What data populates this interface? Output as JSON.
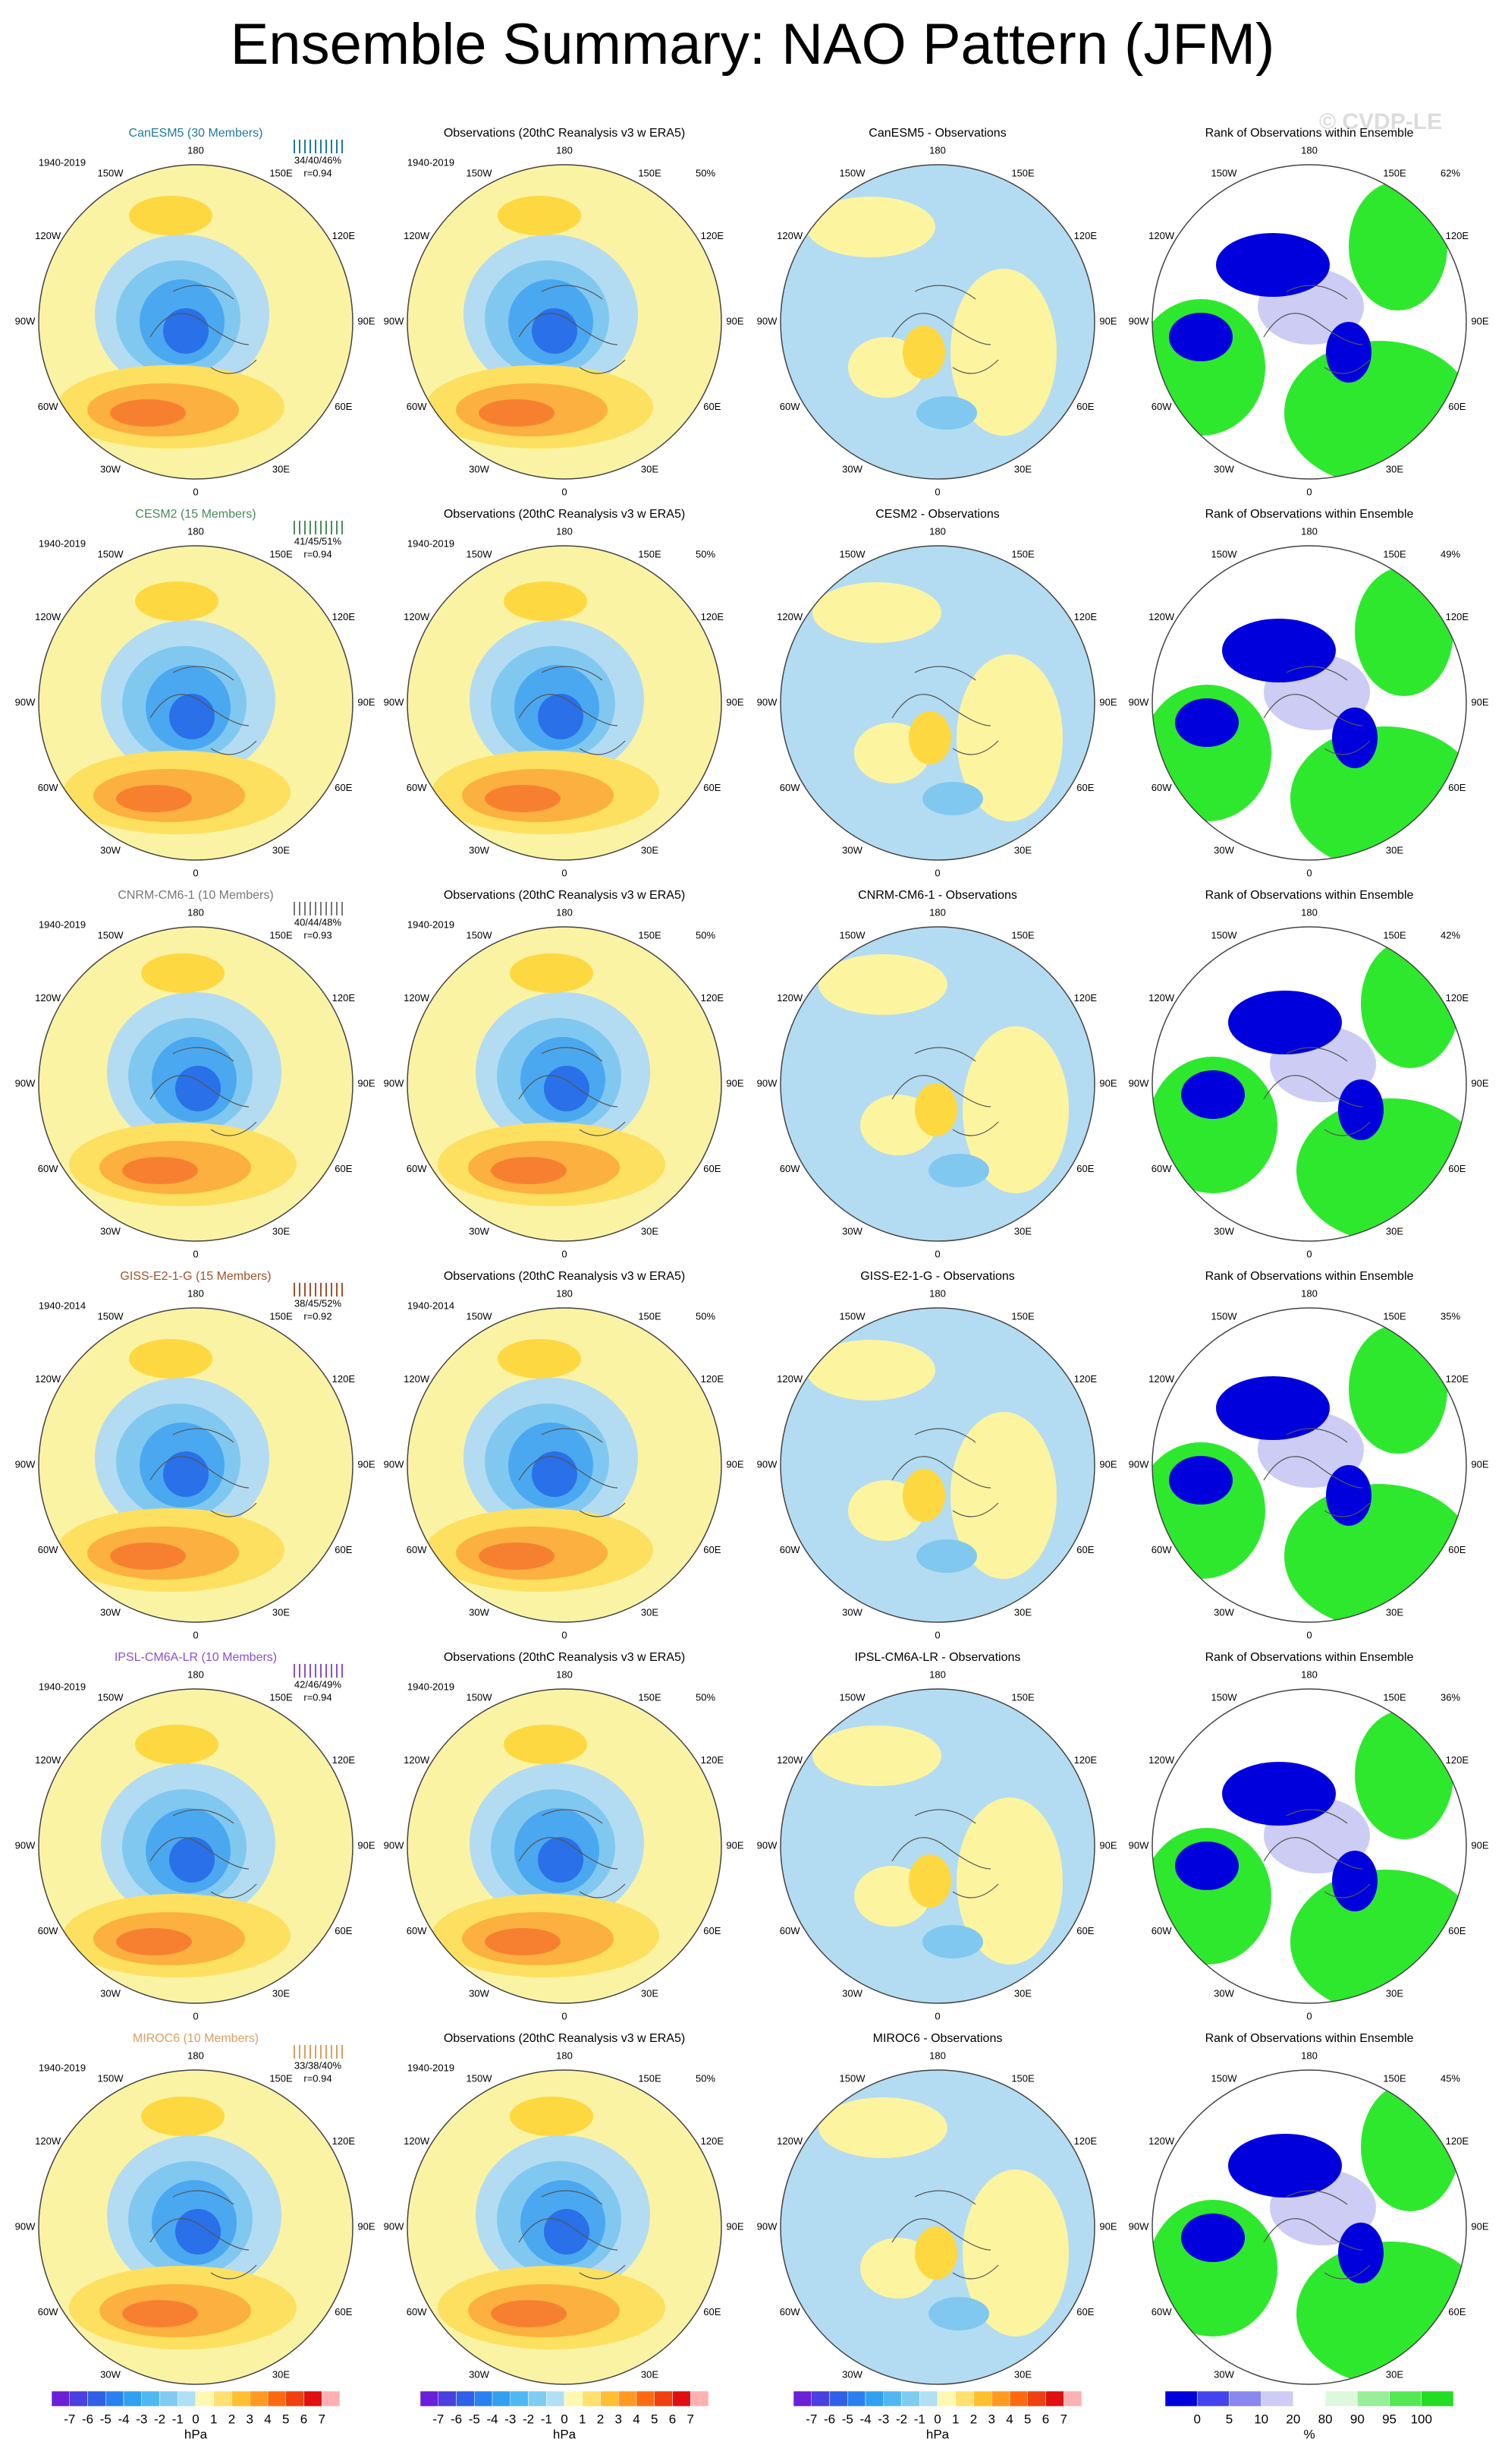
{
  "title": "Ensemble Summary: NAO Pattern (JFM)",
  "watermark": "© CVDP-LE",
  "obs_title": "Observations (20thC Reanalysis v3 w ERA5)",
  "rank_title": "Rank of Observations within Ensemble",
  "longitudes": [
    "0",
    "30E",
    "60E",
    "90E",
    "120E",
    "150E",
    "180",
    "150W",
    "120W",
    "90W",
    "60W",
    "30W"
  ],
  "rows": [
    {
      "model": "CanESM5 (30 Members)",
      "color": "#1f78a0",
      "period": "1940-2019",
      "spread": "34/40/46%",
      "r": "r=0.94",
      "obs_period": "1940-2019",
      "obs_pct": "50%",
      "diff_title": "CanESM5 - Observations",
      "rank_pct": "62%"
    },
    {
      "model": "CESM2 (15 Members)",
      "color": "#4a8a5a",
      "period": "1940-2019",
      "spread": "41/45/51%",
      "r": "r=0.94",
      "obs_period": "1940-2019",
      "obs_pct": "50%",
      "diff_title": "CESM2 - Observations",
      "rank_pct": "49%"
    },
    {
      "model": "CNRM-CM6-1 (10 Members)",
      "color": "#777777",
      "period": "1940-2019",
      "spread": "40/44/48%",
      "r": "r=0.93",
      "obs_period": "1940-2019",
      "obs_pct": "50%",
      "diff_title": "CNRM-CM6-1 - Observations",
      "rank_pct": "42%"
    },
    {
      "model": "GISS-E2-1-G (15 Members)",
      "color": "#a0522d",
      "period": "1940-2014",
      "spread": "38/45/52%",
      "r": "r=0.92",
      "obs_period": "1940-2014",
      "obs_pct": "50%",
      "diff_title": "GISS-E2-1-G - Observations",
      "rank_pct": "35%"
    },
    {
      "model": "IPSL-CM6A-LR (10 Members)",
      "color": "#8a4fd0",
      "period": "1940-2019",
      "spread": "42/46/49%",
      "r": "r=0.94",
      "obs_period": "1940-2019",
      "obs_pct": "50%",
      "diff_title": "IPSL-CM6A-LR - Observations",
      "rank_pct": "36%"
    },
    {
      "model": "MIROC6 (10 Members)",
      "color": "#d8a060",
      "period": "1940-2019",
      "spread": "33/38/40%",
      "r": "r=0.94",
      "obs_period": "1940-2019",
      "obs_pct": "50%",
      "diff_title": "MIROC6 - Observations",
      "rank_pct": "45%"
    }
  ],
  "colorbars": [
    {
      "ticks": [
        -7,
        -6,
        -5,
        -4,
        -3,
        -2,
        -1,
        0,
        1,
        2,
        3,
        4,
        5,
        6,
        7
      ],
      "unit": "hPa",
      "colors": [
        "#6a1fd8",
        "#4a3fe0",
        "#3060e8",
        "#2a80f0",
        "#30a0f0",
        "#50b8f0",
        "#80ccf0",
        "#b0e0f4",
        "#fff8b0",
        "#ffe070",
        "#ffc030",
        "#ff9a20",
        "#ff6a10",
        "#f04010",
        "#e01010",
        "#ffb0b0"
      ]
    },
    {
      "ticks": [
        -7,
        -6,
        -5,
        -4,
        -3,
        -2,
        -1,
        0,
        1,
        2,
        3,
        4,
        5,
        6,
        7
      ],
      "unit": "hPa",
      "colors": [
        "#6a1fd8",
        "#4a3fe0",
        "#3060e8",
        "#2a80f0",
        "#30a0f0",
        "#50b8f0",
        "#80ccf0",
        "#b0e0f4",
        "#fff8b0",
        "#ffe070",
        "#ffc030",
        "#ff9a20",
        "#ff6a10",
        "#f04010",
        "#e01010",
        "#ffb0b0"
      ]
    },
    {
      "ticks": [
        -7,
        -6,
        -5,
        -4,
        -3,
        -2,
        -1,
        0,
        1,
        2,
        3,
        4,
        5,
        6,
        7
      ],
      "unit": "hPa",
      "colors": [
        "#6a1fd8",
        "#4a3fe0",
        "#3060e8",
        "#2a80f0",
        "#30a0f0",
        "#50b8f0",
        "#80ccf0",
        "#b0e0f4",
        "#fff8b0",
        "#ffe070",
        "#ffc030",
        "#ff9a20",
        "#ff6a10",
        "#f04010",
        "#e01010",
        "#ffb0b0"
      ]
    },
    {
      "ticks": [
        0,
        5,
        10,
        20,
        80,
        90,
        95,
        100
      ],
      "unit": "%",
      "colors": [
        "#0000dd",
        "#4444ee",
        "#8888ee",
        "#ccccf4",
        "#ffffff",
        "#ddf8dd",
        "#99ee99",
        "#55e855",
        "#22dd22"
      ]
    }
  ]
}
